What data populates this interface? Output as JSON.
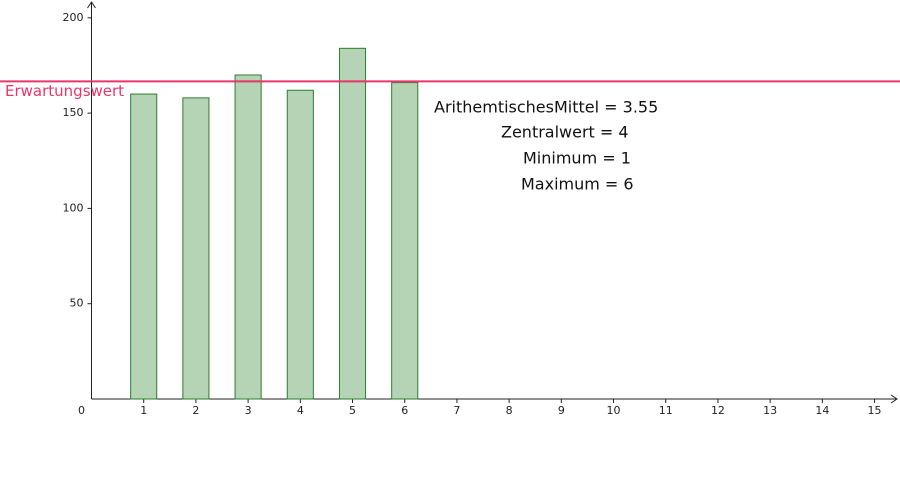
{
  "chart_data": {
    "type": "bar",
    "x": [
      1,
      2,
      3,
      4,
      5,
      6
    ],
    "values": [
      160,
      158,
      170,
      162,
      184,
      166
    ],
    "color": "#b5d3b5",
    "edge_color": "#2e7d2e",
    "xlim": [
      0,
      15.43
    ],
    "ylim": [
      0,
      208.3
    ],
    "xticks": [
      0,
      1,
      2,
      3,
      4,
      5,
      6,
      7,
      8,
      9,
      10,
      11,
      12,
      13,
      14,
      15
    ],
    "yticks": [
      50,
      100,
      150,
      200
    ],
    "reference_line": {
      "label": "Erwartungswert",
      "value": 166.67,
      "color": "#e8366a"
    },
    "annotations": [
      "ArithemtischesMittel = 3.55",
      "Zentralwert = 4",
      "Minimum = 1",
      "Maximum = 6"
    ]
  }
}
